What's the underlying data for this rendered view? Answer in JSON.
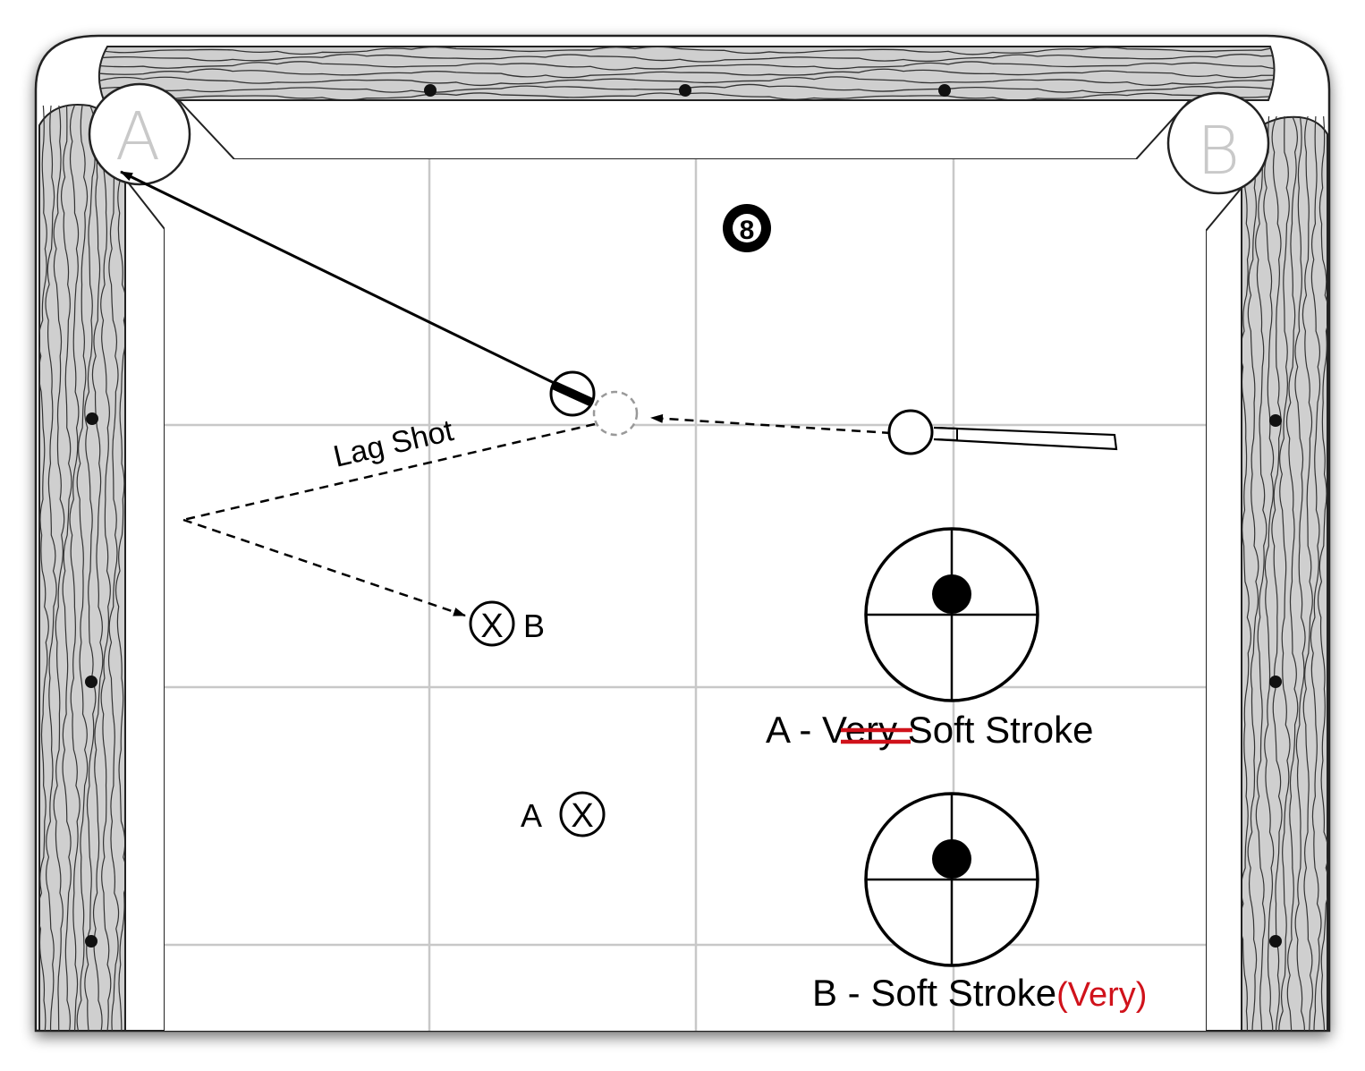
{
  "diagram": {
    "pocket_labels": {
      "left": "A",
      "right": "B"
    },
    "path_label": "Lag Shot",
    "eight_ball_label": "8",
    "target_b": {
      "symbol": "X",
      "label": "B"
    },
    "target_a": {
      "symbol": "X",
      "label": "A"
    },
    "stroke_a": {
      "prefix": "A - ",
      "struck_word": "Very",
      "suffix": " Soft Stroke"
    },
    "stroke_b": {
      "text": "B - Soft Stroke",
      "annotation": "(Very)"
    }
  },
  "colors": {
    "annotation_red": "#d0121b",
    "felt": "#ffffff",
    "grid": "#c8c8c8",
    "rail_wood": "#c9c9c9",
    "ink": "#000000"
  }
}
